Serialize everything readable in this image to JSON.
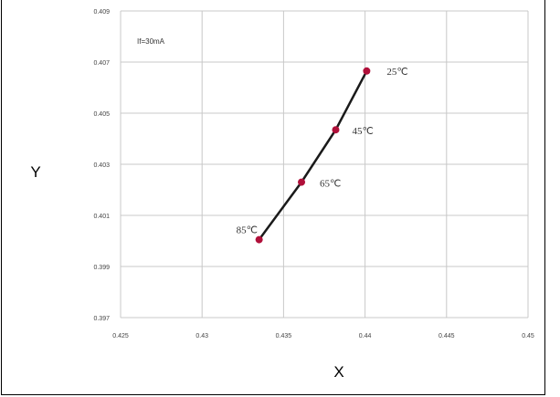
{
  "chart_data": {
    "type": "scatter",
    "title": "",
    "xlabel": "X",
    "ylabel": "Y",
    "xlim": [
      0.425,
      0.45
    ],
    "ylim": [
      0.397,
      0.409
    ],
    "x_ticks": [
      "0.425",
      "0.43",
      "0.435",
      "0.44",
      "0.445",
      "0.45"
    ],
    "y_ticks": [
      "0.397",
      "0.399",
      "0.401",
      "0.403",
      "0.405",
      "0.407",
      "0.409"
    ],
    "grid": true,
    "condition_label": "If=30mA",
    "line_color": "#1a1a1a",
    "marker_color": "#b0103a",
    "series": [
      {
        "points": [
          {
            "x": 0.4401,
            "y": 0.40665,
            "label": "25℃"
          },
          {
            "x": 0.4382,
            "y": 0.40435,
            "label": "45℃"
          },
          {
            "x": 0.4361,
            "y": 0.4023,
            "label": "65℃"
          },
          {
            "x": 0.4335,
            "y": 0.40005,
            "label": "85℃"
          }
        ]
      }
    ]
  }
}
